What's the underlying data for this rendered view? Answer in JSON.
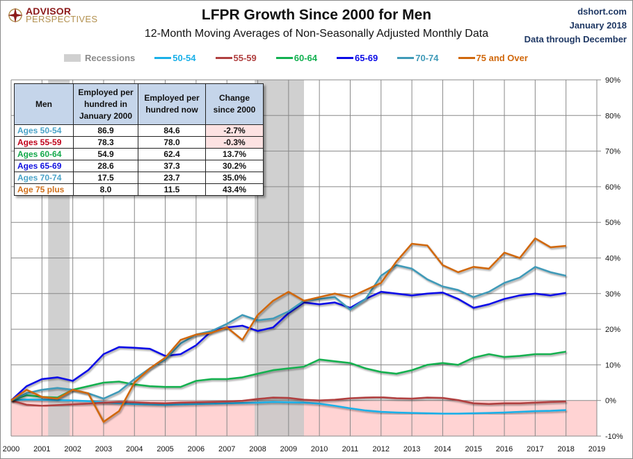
{
  "header": {
    "logo_line1": "ADVISOR",
    "logo_line2": "PERSPECTIVES",
    "title": "LFPR Growth Since 2000 for Men",
    "subtitle": "12-Month Moving Averages of Non-Seasonally Adjusted Monthly Data",
    "source_site": "dshort.com",
    "source_date": "January 2018",
    "source_note": "Data through December"
  },
  "table": {
    "headers": [
      "Men",
      "Employed per hundred in January 2000",
      "Employed per hundred now",
      "Change since 2000"
    ],
    "rows": [
      {
        "label": "Ages 50-54",
        "color": "#4aa3c8",
        "jan2000": "86.9",
        "now": "84.6",
        "change": "-2.7%",
        "negative": true
      },
      {
        "label": "Ages 55-59",
        "color": "#c0001a",
        "jan2000": "78.3",
        "now": "78.0",
        "change": "-0.3%",
        "negative": true
      },
      {
        "label": "Ages 60-64",
        "color": "#12a84a",
        "jan2000": "54.9",
        "now": "62.4",
        "change": "13.7%",
        "negative": false
      },
      {
        "label": "Ages 65-69",
        "color": "#1010e0",
        "jan2000": "28.6",
        "now": "37.3",
        "change": "30.2%",
        "negative": false
      },
      {
        "label": "Ages 70-74",
        "color": "#4aa3c8",
        "jan2000": "17.5",
        "now": "23.7",
        "change": "35.0%",
        "negative": false
      },
      {
        "label": "Age 75 plus",
        "color": "#d0701a",
        "jan2000": "8.0",
        "now": "11.5",
        "change": "43.4%",
        "negative": false
      }
    ]
  },
  "chart_data": {
    "type": "line",
    "title": "LFPR Growth Since 2000 for Men",
    "subtitle": "12-Month Moving Averages of Non-Seasonally Adjusted Monthly Data",
    "xlabel": "",
    "ylabel": "",
    "x_ticks": [
      "2000",
      "2001",
      "2002",
      "2003",
      "2004",
      "2005",
      "2006",
      "2007",
      "2008",
      "2009",
      "2010",
      "2011",
      "2012",
      "2013",
      "2014",
      "2015",
      "2016",
      "2017",
      "2018",
      "2019"
    ],
    "xlim": [
      2000,
      2019
    ],
    "y_ticks": [
      "90%",
      "80%",
      "70%",
      "60%",
      "50%",
      "40%",
      "30%",
      "20%",
      "10%",
      "0%",
      "-10%"
    ],
    "ylim": [
      -10,
      90
    ],
    "y_axis_side": "right",
    "grid": true,
    "negative_region_shaded": true,
    "legend_position": "top",
    "recessions": [
      {
        "label": "Recessions",
        "start": 2001.2,
        "end": 2001.9
      },
      {
        "label": "Recessions",
        "start": 2007.9,
        "end": 2009.5
      }
    ],
    "x": [
      2000,
      2000.5,
      2001,
      2001.5,
      2002,
      2002.5,
      2003,
      2003.5,
      2004,
      2004.5,
      2005,
      2005.5,
      2006,
      2006.5,
      2007,
      2007.5,
      2008,
      2008.5,
      2009,
      2009.5,
      2010,
      2010.5,
      2011,
      2011.5,
      2012,
      2012.5,
      2013,
      2013.5,
      2014,
      2014.5,
      2015,
      2015.5,
      2016,
      2016.5,
      2017,
      2017.5,
      2018
    ],
    "series": [
      {
        "name": "50-54",
        "color": "#1ab0e8",
        "values": [
          0,
          0.3,
          0.2,
          0.1,
          0,
          -0.2,
          -0.5,
          -0.8,
          -1.0,
          -1.1,
          -1.2,
          -1.1,
          -1.0,
          -0.9,
          -0.8,
          -0.7,
          -0.6,
          -0.4,
          -0.5,
          -0.6,
          -0.9,
          -1.5,
          -2.2,
          -2.8,
          -3.2,
          -3.4,
          -3.5,
          -3.6,
          -3.7,
          -3.7,
          -3.6,
          -3.5,
          -3.4,
          -3.2,
          -3.0,
          -2.9,
          -2.7
        ]
      },
      {
        "name": "55-59",
        "color": "#b04040",
        "values": [
          0,
          -1.2,
          -1.5,
          -1.3,
          -1.1,
          -0.9,
          -0.6,
          -0.4,
          -0.5,
          -0.7,
          -0.8,
          -0.6,
          -0.5,
          -0.4,
          -0.3,
          -0.1,
          0.4,
          0.8,
          0.7,
          0.2,
          0,
          0.2,
          0.6,
          0.8,
          0.9,
          0.6,
          0.5,
          0.8,
          0.7,
          0.1,
          -0.8,
          -1.0,
          -0.8,
          -0.8,
          -0.6,
          -0.4,
          -0.3
        ]
      },
      {
        "name": "60-64",
        "color": "#12b050",
        "values": [
          0,
          1.5,
          1.0,
          0.8,
          3.0,
          4.0,
          5.0,
          5.3,
          4.5,
          4.0,
          3.8,
          3.8,
          5.5,
          6.0,
          6.0,
          6.5,
          7.5,
          8.5,
          9.0,
          9.5,
          11.5,
          11.0,
          10.5,
          9.0,
          8.0,
          7.5,
          8.5,
          10.0,
          10.5,
          10.0,
          12.0,
          13.0,
          12.2,
          12.5,
          13.0,
          13.0,
          13.7
        ]
      },
      {
        "name": "65-69",
        "color": "#0a0ae6",
        "values": [
          0,
          4.0,
          6.0,
          6.5,
          5.5,
          8.5,
          13.0,
          15.0,
          14.8,
          14.5,
          12.5,
          13.0,
          15.5,
          19.5,
          20.5,
          21.0,
          19.5,
          20.5,
          24.5,
          27.5,
          27.0,
          27.5,
          26.0,
          28.5,
          30.5,
          30.0,
          29.5,
          30.0,
          30.3,
          28.5,
          26.0,
          27.0,
          28.5,
          29.5,
          30.0,
          29.5,
          30.2
        ]
      },
      {
        "name": "70-74",
        "color": "#3f9ab8",
        "values": [
          0,
          2.0,
          3.0,
          3.5,
          3.0,
          2.0,
          0.5,
          2.5,
          6.0,
          9.0,
          11.5,
          16.0,
          18.5,
          19.5,
          21.5,
          24.0,
          22.5,
          23.0,
          25.0,
          28.0,
          28.5,
          29.0,
          25.5,
          28.5,
          35.0,
          38.0,
          37.0,
          34.0,
          32.0,
          31.0,
          29.0,
          30.5,
          33.0,
          34.5,
          37.5,
          36.0,
          35.0
        ]
      },
      {
        "name": "75 and Over",
        "color": "#d0680c",
        "values": [
          0,
          3.0,
          1.0,
          0.5,
          3.0,
          2.0,
          -6.0,
          -3.0,
          5.0,
          9.0,
          12.0,
          17.0,
          18.5,
          19.0,
          20.5,
          17.0,
          24.0,
          28.0,
          30.5,
          28.0,
          29.0,
          30.0,
          29.0,
          31.0,
          33.0,
          39.0,
          44.0,
          43.5,
          38.0,
          36.0,
          37.5,
          37.0,
          41.5,
          40.0,
          45.5,
          43.0,
          43.4
        ]
      }
    ]
  }
}
